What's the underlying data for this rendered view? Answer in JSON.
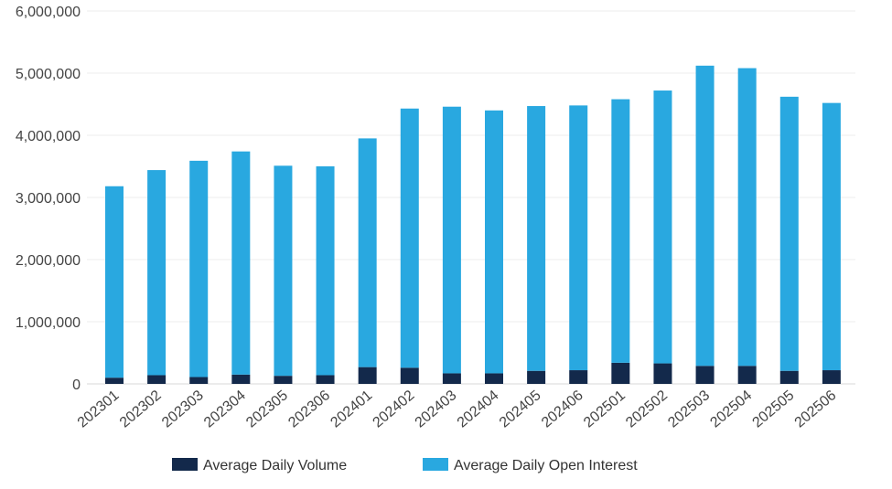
{
  "chart_data": {
    "type": "bar",
    "stacked": true,
    "categories": [
      "202301",
      "202302",
      "202303",
      "202304",
      "202305",
      "202306",
      "202401",
      "202402",
      "202403",
      "202404",
      "202405",
      "202406",
      "202501",
      "202502",
      "202503",
      "202504",
      "202505",
      "202506"
    ],
    "series": [
      {
        "name": "Average Daily Volume",
        "color": "#13294b",
        "values": [
          100000,
          140000,
          110000,
          150000,
          130000,
          140000,
          270000,
          260000,
          170000,
          170000,
          210000,
          220000,
          340000,
          330000,
          290000,
          290000,
          210000,
          220000
        ]
      },
      {
        "name": "Average Daily Open Interest",
        "color": "#29a8e0",
        "values": [
          3080000,
          3300000,
          3480000,
          3590000,
          3380000,
          3360000,
          3680000,
          4170000,
          4290000,
          4230000,
          4260000,
          4260000,
          4240000,
          4390000,
          4830000,
          4790000,
          4410000,
          4300000
        ]
      }
    ],
    "y_ticks": [
      "0",
      "1,000,000",
      "2,000,000",
      "3,000,000",
      "4,000,000",
      "5,000,000",
      "6,000,000"
    ],
    "ylim": [
      0,
      6000000
    ],
    "grid": true,
    "legend_position": "bottom",
    "title": "",
    "xlabel": "",
    "ylabel": ""
  }
}
